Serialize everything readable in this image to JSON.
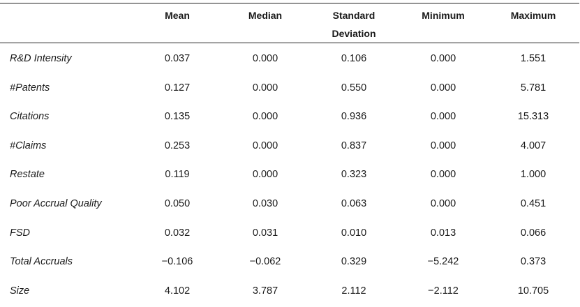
{
  "table": {
    "headers": [
      "Mean",
      "Median",
      "Standard\nDeviation",
      "Minimum",
      "Maximum"
    ],
    "rows": [
      {
        "label": "R&D Intensity",
        "values": [
          "0.037",
          "0.000",
          "0.106",
          "0.000",
          "1.551"
        ]
      },
      {
        "label": "#Patents",
        "values": [
          "0.127",
          "0.000",
          "0.550",
          "0.000",
          "5.781"
        ]
      },
      {
        "label": "Citations",
        "values": [
          "0.135",
          "0.000",
          "0.936",
          "0.000",
          "15.313"
        ]
      },
      {
        "label": "#Claims",
        "values": [
          "0.253",
          "0.000",
          "0.837",
          "0.000",
          "4.007"
        ]
      },
      {
        "label": "Restate",
        "values": [
          "0.119",
          "0.000",
          "0.323",
          "0.000",
          "1.000"
        ]
      },
      {
        "label": "Poor Accrual Quality",
        "values": [
          "0.050",
          "0.030",
          "0.063",
          "0.000",
          "0.451"
        ]
      },
      {
        "label": "FSD",
        "values": [
          "0.032",
          "0.031",
          "0.010",
          "0.013",
          "0.066"
        ]
      },
      {
        "label": "Total Accruals",
        "values": [
          "−0.106",
          "−0.062",
          "0.329",
          "−5.242",
          "0.373"
        ]
      },
      {
        "label": "Size",
        "values": [
          "4.102",
          "3.787",
          "2.112",
          "−2.112",
          "10.705"
        ]
      }
    ]
  }
}
